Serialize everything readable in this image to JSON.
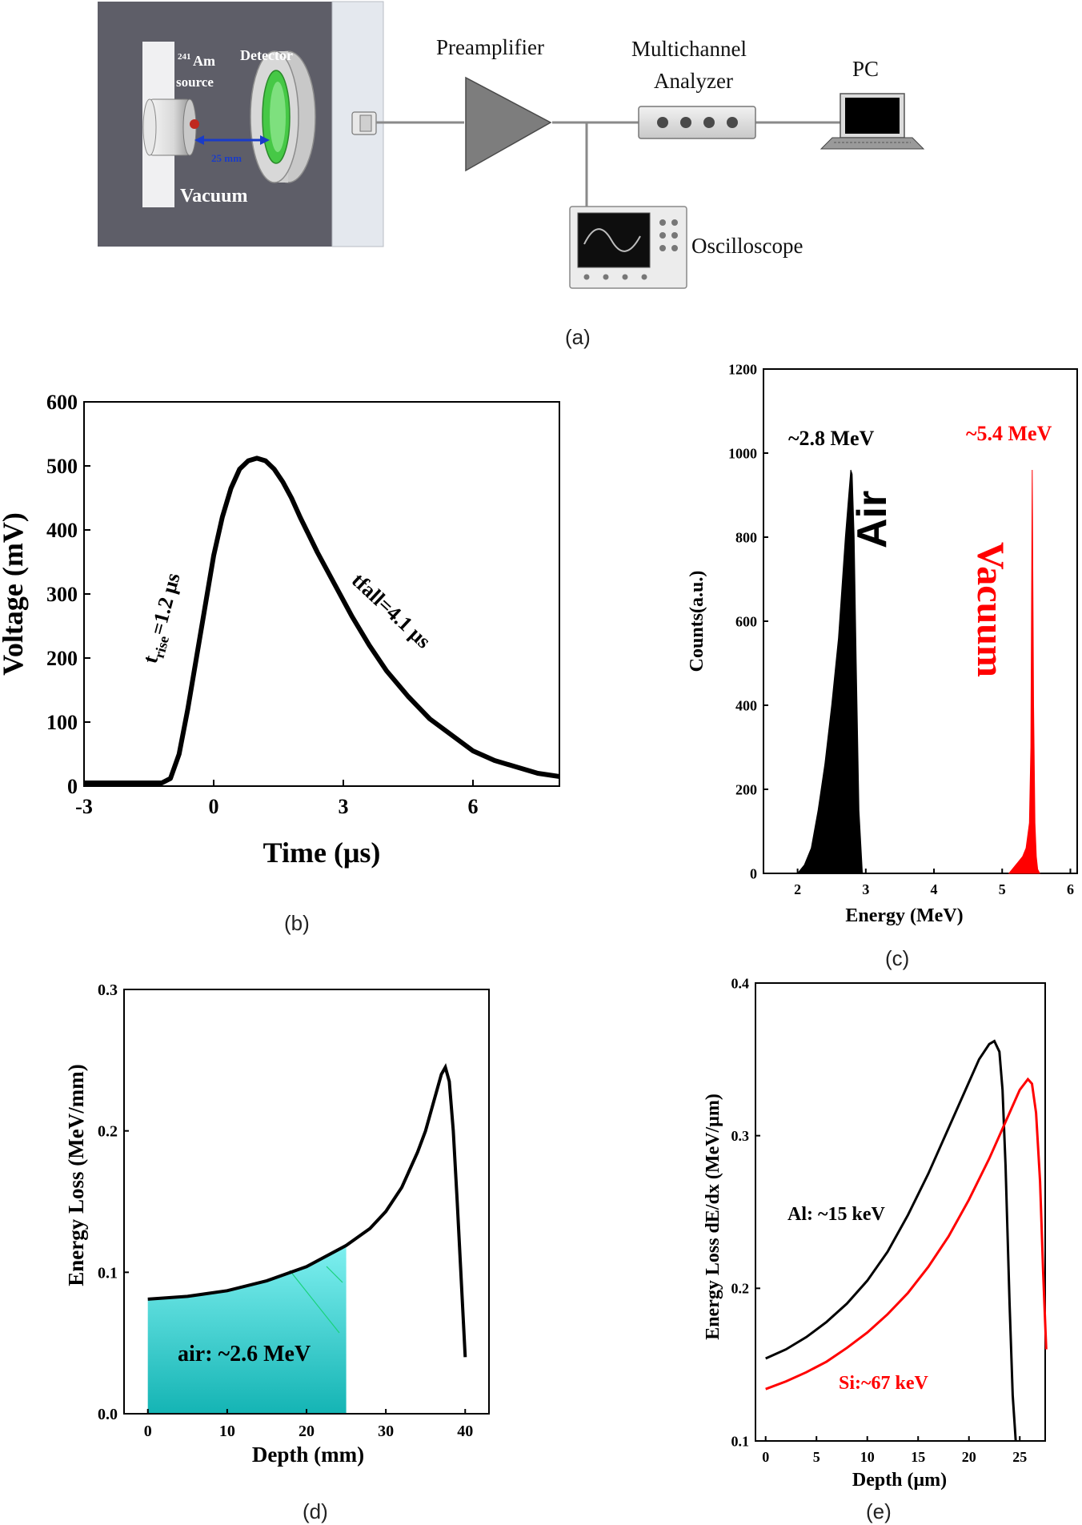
{
  "panel_a": {
    "caption": "(a)",
    "source_superscript": "241",
    "source_label_1": "Am",
    "source_label_2": "source",
    "detector_label": "Detector",
    "distance_label": "25 mm",
    "vacuum_label": "Vacuum",
    "preamp_label": "Preamplifier",
    "mca_label_1": "Multichannel",
    "mca_label_2": "Analyzer",
    "pc_label": "PC",
    "oscilloscope_label": "Oscilloscope",
    "colors": {
      "chamber": "#5e5e68",
      "wall": "#e4e8ee",
      "arrow": "#1a3cc8",
      "detector_green": "#46c846",
      "triangle": "#7d7d7d"
    }
  },
  "chart_data": [
    {
      "panel": "b",
      "type": "line",
      "caption": "(b)",
      "xlabel": "Time (μs)",
      "ylabel": "Voltage (mV)",
      "xlim": [
        -3,
        8
      ],
      "ylim": [
        0,
        600
      ],
      "xticks": [
        -3,
        0,
        3,
        6
      ],
      "yticks": [
        0,
        100,
        200,
        300,
        400,
        500,
        600
      ],
      "annotations": [
        {
          "text_main": "t",
          "text_sub": "rise",
          "text_rest": "=1.2 μs"
        },
        {
          "text_main": "tfall=4.1 μs"
        }
      ],
      "series": [
        {
          "x": [
            -3,
            -2.5,
            -2,
            -1.5,
            -1.2,
            -1.0,
            -0.8,
            -0.6,
            -0.4,
            -0.2,
            0,
            0.2,
            0.4,
            0.6,
            0.8,
            1.0,
            1.2,
            1.4,
            1.6,
            1.8,
            2.0,
            2.4,
            2.8,
            3.2,
            3.6,
            4.0,
            4.5,
            5.0,
            5.5,
            6.0,
            6.5,
            7.0,
            7.5,
            8.0
          ],
          "y": [
            5,
            5,
            5,
            5,
            5,
            12,
            50,
            120,
            200,
            280,
            360,
            420,
            465,
            495,
            508,
            512,
            508,
            495,
            475,
            450,
            420,
            365,
            315,
            265,
            220,
            180,
            140,
            105,
            80,
            55,
            40,
            30,
            20,
            15
          ]
        }
      ]
    },
    {
      "panel": "c",
      "type": "area",
      "caption": "(c)",
      "xlabel": "Energy (MeV)",
      "ylabel": "Counts(a.u.)",
      "xlim": [
        1.5,
        6.1
      ],
      "ylim": [
        0,
        1200
      ],
      "xticks": [
        2,
        3,
        4,
        5,
        6
      ],
      "yticks": [
        0,
        200,
        400,
        600,
        800,
        1000,
        1200
      ],
      "annotations": [
        {
          "text": "~2.8 MeV"
        },
        {
          "text": "~5.4 MeV"
        },
        {
          "text": "Air"
        },
        {
          "text": "Vacuum"
        }
      ],
      "series": [
        {
          "color": "#000000",
          "x": [
            2.0,
            2.1,
            2.2,
            2.3,
            2.4,
            2.5,
            2.6,
            2.65,
            2.7,
            2.75,
            2.78,
            2.8,
            2.83,
            2.86,
            2.9,
            2.95
          ],
          "y": [
            0,
            20,
            60,
            150,
            260,
            400,
            560,
            680,
            800,
            900,
            960,
            950,
            800,
            500,
            150,
            0
          ]
        },
        {
          "color": "#ff0000",
          "x": [
            5.1,
            5.2,
            5.3,
            5.35,
            5.4,
            5.42,
            5.44,
            5.46,
            5.48,
            5.5,
            5.52,
            5.55
          ],
          "y": [
            0,
            20,
            40,
            60,
            120,
            300,
            960,
            400,
            120,
            40,
            10,
            0
          ]
        }
      ]
    },
    {
      "panel": "d",
      "type": "line",
      "caption": "(d)",
      "xlabel": "Depth (mm)",
      "ylabel": "Energy Loss  (MeV/mm)",
      "xlim": [
        -3,
        43
      ],
      "ylim": [
        0,
        0.3
      ],
      "xticks": [
        0,
        10,
        20,
        30,
        40
      ],
      "yticks": [
        0.0,
        0.1,
        0.2,
        0.3
      ],
      "shaded_region": {
        "x_from": 0,
        "x_to": 25,
        "label": "air: ~2.6 MeV",
        "color_top": "#7ff0f0",
        "color_bottom": "#14b4b4"
      },
      "series": [
        {
          "x": [
            0,
            5,
            10,
            15,
            20,
            25,
            28,
            30,
            32,
            34,
            35,
            36,
            37,
            37.5,
            38,
            38.5,
            39,
            39.5,
            40
          ],
          "y": [
            0.081,
            0.083,
            0.087,
            0.094,
            0.104,
            0.119,
            0.131,
            0.143,
            0.16,
            0.185,
            0.2,
            0.22,
            0.24,
            0.245,
            0.235,
            0.2,
            0.15,
            0.095,
            0.04
          ]
        }
      ]
    },
    {
      "panel": "e",
      "type": "line",
      "caption": "(e)",
      "xlabel": "Depth (μm)",
      "ylabel": "Energy Loss dE/dx (MeV/μm)",
      "xlim": [
        -1,
        27.5
      ],
      "ylim": [
        0.1,
        0.4
      ],
      "xticks": [
        0,
        5,
        10,
        15,
        20,
        25
      ],
      "yticks": [
        0.1,
        0.2,
        0.3,
        0.4
      ],
      "annotations": [
        {
          "text": "Al:  ~15 keV"
        },
        {
          "text": "Si:~67 keV"
        }
      ],
      "series": [
        {
          "name": "Al",
          "color": "#000000",
          "x": [
            0,
            2,
            4,
            6,
            8,
            10,
            12,
            14,
            16,
            18,
            20,
            21,
            22,
            22.5,
            23,
            23.3,
            23.6,
            24,
            24.3,
            24.6
          ],
          "y": [
            0.154,
            0.16,
            0.168,
            0.178,
            0.19,
            0.205,
            0.224,
            0.248,
            0.275,
            0.305,
            0.335,
            0.35,
            0.36,
            0.362,
            0.355,
            0.33,
            0.28,
            0.19,
            0.13,
            0.1
          ]
        },
        {
          "name": "Si",
          "color": "#ff0000",
          "x": [
            0,
            2,
            4,
            6,
            8,
            10,
            12,
            14,
            16,
            18,
            20,
            22,
            24,
            25,
            25.8,
            26.2,
            26.6,
            27,
            27.3,
            27.6
          ],
          "y": [
            0.134,
            0.139,
            0.145,
            0.152,
            0.161,
            0.171,
            0.183,
            0.197,
            0.214,
            0.234,
            0.258,
            0.285,
            0.315,
            0.33,
            0.337,
            0.334,
            0.315,
            0.27,
            0.21,
            0.16
          ]
        }
      ]
    }
  ]
}
